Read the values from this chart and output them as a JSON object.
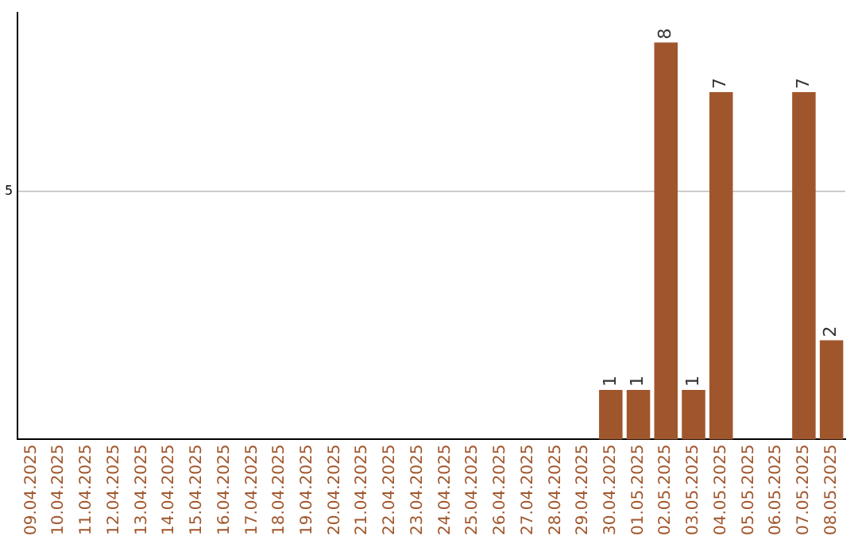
{
  "chart_data": {
    "type": "bar",
    "categories": [
      "09.04.2025",
      "10.04.2025",
      "11.04.2025",
      "12.04.2025",
      "13.04.2025",
      "14.04.2025",
      "15.04.2025",
      "16.04.2025",
      "17.04.2025",
      "18.04.2025",
      "19.04.2025",
      "20.04.2025",
      "21.04.2025",
      "22.04.2025",
      "23.04.2025",
      "24.04.2025",
      "25.04.2025",
      "26.04.2025",
      "27.04.2025",
      "28.04.2025",
      "29.04.2025",
      "30.04.2025",
      "01.05.2025",
      "02.05.2025",
      "03.05.2025",
      "04.05.2025",
      "05.05.2025",
      "06.05.2025",
      "07.05.2025",
      "08.05.2025"
    ],
    "values": [
      null,
      null,
      null,
      null,
      null,
      null,
      null,
      null,
      null,
      null,
      null,
      null,
      null,
      null,
      null,
      null,
      null,
      null,
      null,
      null,
      null,
      1,
      1,
      8,
      1,
      7,
      null,
      null,
      7,
      2
    ],
    "color": "#a0562c",
    "ylim": [
      0,
      8.6
    ],
    "yticks": [
      5
    ],
    "grid": "y",
    "legend": false,
    "data_labels": true
  }
}
